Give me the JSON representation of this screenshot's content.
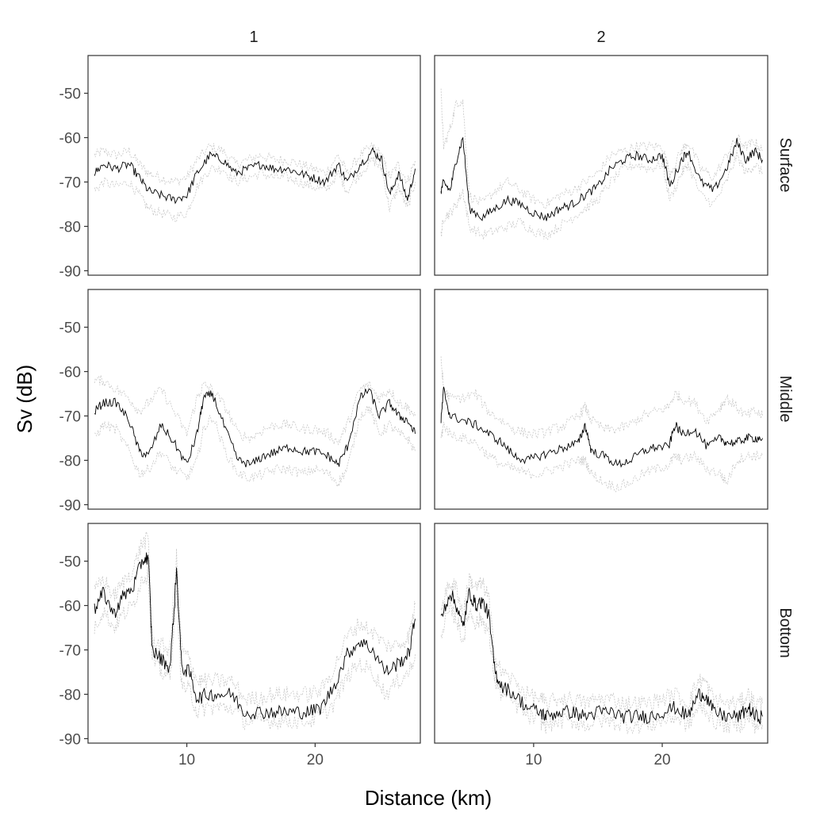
{
  "chart_data": {
    "type": "line",
    "title": "",
    "xlabel": "Distance (km)",
    "ylabel": "Sv (dB)",
    "layout": "facet_grid(rows = layer, cols = transect)",
    "facet_columns": [
      "1",
      "2"
    ],
    "facet_rows": [
      "Surface",
      "Middle",
      "Bottom"
    ],
    "xlim": [
      2.3,
      28.2
    ],
    "ylim": [
      -91,
      -41.5
    ],
    "x_ticks": [
      10,
      20
    ],
    "y_ticks": [
      -50,
      -60,
      -70,
      -80,
      -90
    ],
    "grid": false,
    "legend": "none",
    "series_style": {
      "mean": {
        "color": "#000000",
        "linetype": "solid",
        "description": "mean Sv"
      },
      "bounds": {
        "color": "#c8c8c8",
        "linetype": "dashed",
        "description": "upper/lower interval"
      }
    },
    "panels": [
      {
        "column": "1",
        "row": "Surface",
        "x": [
          2.8,
          3.5,
          4.5,
          5.5,
          6.3,
          7.0,
          8.0,
          9.0,
          10.0,
          10.8,
          11.8,
          12.8,
          13.8,
          14.8,
          15.8,
          16.8,
          17.8,
          18.8,
          19.8,
          20.8,
          21.8,
          22.5,
          23.5,
          24.5,
          25.2,
          25.8,
          26.5,
          27.2,
          27.8
        ],
        "mean": [
          -68,
          -66,
          -67,
          -66,
          -69,
          -72,
          -73,
          -74,
          -73,
          -68,
          -64,
          -65,
          -68,
          -67,
          -66,
          -67,
          -67,
          -68,
          -69,
          -70,
          -66,
          -70,
          -66,
          -63,
          -65,
          -73,
          -68,
          -74,
          -67
        ],
        "upper": [
          -64,
          -63,
          -64,
          -63,
          -66,
          -68,
          -69,
          -70,
          -69,
          -65,
          -62,
          -63,
          -66,
          -65,
          -64,
          -65,
          -65,
          -66,
          -67,
          -68,
          -64,
          -68,
          -64,
          -62,
          -64,
          -69,
          -66,
          -70,
          -65
        ],
        "lower": [
          -72,
          -70,
          -71,
          -70,
          -73,
          -76,
          -77,
          -78,
          -77,
          -71,
          -67,
          -67,
          -70,
          -69,
          -68,
          -69,
          -69,
          -70,
          -71,
          -72,
          -68,
          -72,
          -68,
          -65,
          -67,
          -76,
          -71,
          -76,
          -70
        ]
      },
      {
        "column": "2",
        "row": "Surface",
        "x": [
          2.8,
          3.0,
          3.5,
          4.0,
          4.5,
          5.0,
          6.0,
          7.0,
          8.0,
          9.0,
          10.0,
          11.0,
          12.0,
          13.0,
          14.0,
          15.0,
          16.0,
          17.0,
          18.0,
          19.0,
          20.0,
          20.6,
          21.5,
          22.0,
          23.0,
          24.0,
          25.0,
          25.8,
          26.5,
          27.2,
          27.8
        ],
        "mean": [
          -72,
          -70,
          -72,
          -65,
          -60,
          -76,
          -78,
          -76,
          -74,
          -75,
          -77,
          -78,
          -76,
          -75,
          -73,
          -71,
          -67,
          -65,
          -64,
          -65,
          -64,
          -71,
          -65,
          -63,
          -70,
          -72,
          -67,
          -61,
          -65,
          -63,
          -65
        ],
        "upper": [
          -50,
          -62,
          -58,
          -52,
          -52,
          -73,
          -75,
          -72,
          -70,
          -72,
          -74,
          -75,
          -73,
          -72,
          -70,
          -68,
          -64,
          -63,
          -62,
          -62,
          -62,
          -68,
          -63,
          -61,
          -67,
          -69,
          -64,
          -60,
          -62,
          -61,
          -63
        ],
        "lower": [
          -82,
          -78,
          -77,
          -75,
          -72,
          -80,
          -82,
          -81,
          -80,
          -79,
          -81,
          -82,
          -80,
          -78,
          -76,
          -74,
          -70,
          -67,
          -66,
          -67,
          -66,
          -74,
          -68,
          -66,
          -73,
          -75,
          -70,
          -64,
          -68,
          -66,
          -68
        ]
      },
      {
        "column": "1",
        "row": "Middle",
        "x": [
          2.8,
          3.5,
          4.5,
          5.5,
          6.3,
          7.0,
          8.0,
          9.0,
          10.0,
          10.8,
          11.3,
          12.0,
          13.0,
          14.0,
          15.0,
          16.0,
          17.0,
          18.0,
          19.0,
          20.0,
          21.0,
          21.8,
          22.5,
          23.5,
          24.2,
          25.0,
          25.8,
          26.5,
          27.2,
          27.8
        ],
        "mean": [
          -69,
          -67,
          -67,
          -71,
          -78,
          -79,
          -72,
          -76,
          -81,
          -74,
          -66,
          -65,
          -73,
          -80,
          -81,
          -79,
          -78,
          -77,
          -78,
          -78,
          -79,
          -81,
          -77,
          -66,
          -64,
          -70,
          -67,
          -70,
          -71,
          -74
        ],
        "upper": [
          -62,
          -62,
          -64,
          -66,
          -69,
          -67,
          -64,
          -69,
          -74,
          -66,
          -63,
          -64,
          -68,
          -74,
          -75,
          -73,
          -72,
          -72,
          -73,
          -73,
          -74,
          -76,
          -72,
          -64,
          -63,
          -66,
          -64,
          -67,
          -68,
          -70
        ],
        "lower": [
          -75,
          -72,
          -73,
          -78,
          -83,
          -82,
          -78,
          -82,
          -84,
          -80,
          -73,
          -70,
          -78,
          -83,
          -84,
          -83,
          -82,
          -82,
          -83,
          -82,
          -83,
          -85,
          -82,
          -70,
          -68,
          -74,
          -72,
          -74,
          -75,
          -78
        ]
      },
      {
        "column": "2",
        "row": "Middle",
        "x": [
          2.8,
          3.0,
          3.5,
          4.5,
          5.5,
          6.5,
          7.5,
          8.5,
          9.5,
          10.5,
          11.5,
          12.5,
          13.5,
          14.0,
          14.5,
          15.5,
          16.5,
          17.5,
          18.5,
          19.5,
          20.5,
          21.0,
          21.5,
          22.5,
          23.5,
          24.5,
          25.0,
          25.8,
          26.5,
          27.2,
          27.8
        ],
        "mean": [
          -71,
          -64,
          -70,
          -71,
          -72,
          -74,
          -76,
          -79,
          -80,
          -79,
          -78,
          -77,
          -76,
          -72,
          -78,
          -79,
          -81,
          -80,
          -78,
          -77,
          -77,
          -72,
          -74,
          -73,
          -77,
          -75,
          -76,
          -76,
          -75,
          -75,
          -75
        ],
        "upper": [
          -57,
          -64,
          -66,
          -66,
          -65,
          -69,
          -71,
          -73,
          -74,
          -74,
          -73,
          -72,
          -70,
          -68,
          -71,
          -73,
          -73,
          -72,
          -70,
          -69,
          -68,
          -65,
          -66,
          -67,
          -71,
          -68,
          -66,
          -68,
          -70,
          -69,
          -70
        ],
        "lower": [
          -75,
          -72,
          -74,
          -75,
          -76,
          -79,
          -81,
          -82,
          -83,
          -83,
          -82,
          -81,
          -80,
          -80,
          -83,
          -85,
          -86,
          -85,
          -83,
          -82,
          -81,
          -79,
          -80,
          -79,
          -82,
          -83,
          -85,
          -80,
          -79,
          -79,
          -79
        ]
      },
      {
        "column": "1",
        "row": "Bottom",
        "x": [
          2.8,
          3.5,
          4.3,
          5.0,
          5.8,
          6.5,
          7.0,
          7.3,
          8.0,
          8.7,
          9.2,
          9.6,
          10.2,
          10.8,
          11.5,
          12.5,
          13.5,
          14.5,
          15.5,
          16.5,
          17.5,
          18.5,
          19.5,
          20.5,
          21.5,
          22.5,
          23.5,
          24.5,
          25.5,
          26.5,
          27.3,
          27.8
        ],
        "mean": [
          -61,
          -57,
          -62,
          -58,
          -56,
          -50,
          -49,
          -70,
          -72,
          -74,
          -52,
          -74,
          -75,
          -81,
          -80,
          -80,
          -80,
          -84,
          -84,
          -84,
          -84,
          -84,
          -84,
          -83,
          -78,
          -71,
          -68,
          -70,
          -75,
          -73,
          -71,
          -63
        ],
        "upper": [
          -57,
          -54,
          -58,
          -55,
          -52,
          -46,
          -45,
          -68,
          -69,
          -70,
          -49,
          -70,
          -72,
          -77,
          -77,
          -77,
          -77,
          -81,
          -81,
          -80,
          -80,
          -80,
          -80,
          -79,
          -74,
          -67,
          -64,
          -66,
          -69,
          -69,
          -67,
          -60
        ],
        "lower": [
          -65,
          -61,
          -65,
          -62,
          -60,
          -54,
          -53,
          -72,
          -75,
          -76,
          -57,
          -78,
          -79,
          -84,
          -83,
          -83,
          -83,
          -86,
          -86,
          -86,
          -86,
          -86,
          -86,
          -85,
          -82,
          -76,
          -73,
          -75,
          -80,
          -77,
          -75,
          -71
        ]
      },
      {
        "column": "2",
        "row": "Bottom",
        "x": [
          2.8,
          3.5,
          4.0,
          4.5,
          5.0,
          5.5,
          6.0,
          6.5,
          7.0,
          7.5,
          8.5,
          9.5,
          10.5,
          11.0,
          12.0,
          13.0,
          14.0,
          15.0,
          16.0,
          17.0,
          18.0,
          19.0,
          20.0,
          21.0,
          22.0,
          22.8,
          23.3,
          24.0,
          25.0,
          26.0,
          26.7,
          27.2,
          27.8
        ],
        "mean": [
          -63,
          -57,
          -60,
          -65,
          -57,
          -60,
          -59,
          -62,
          -75,
          -78,
          -80,
          -83,
          -84,
          -85,
          -84,
          -84,
          -85,
          -84,
          -84,
          -85,
          -85,
          -85,
          -84,
          -83,
          -85,
          -80,
          -80,
          -84,
          -85,
          -85,
          -83,
          -85,
          -85
        ],
        "upper": [
          -60,
          -55,
          -56,
          -62,
          -54,
          -56,
          -55,
          -58,
          -72,
          -75,
          -77,
          -80,
          -81,
          -82,
          -81,
          -81,
          -82,
          -81,
          -81,
          -82,
          -82,
          -82,
          -81,
          -80,
          -82,
          -77,
          -77,
          -81,
          -82,
          -82,
          -80,
          -82,
          -82
        ],
        "lower": [
          -66,
          -61,
          -63,
          -68,
          -61,
          -64,
          -63,
          -66,
          -77,
          -80,
          -82,
          -85,
          -86,
          -87,
          -86,
          -86,
          -87,
          -86,
          -86,
          -87,
          -87,
          -87,
          -86,
          -85,
          -87,
          -83,
          -83,
          -86,
          -87,
          -87,
          -85,
          -87,
          -87
        ]
      }
    ]
  },
  "labels": {
    "col_strip": [
      "1",
      "2"
    ],
    "row_strip": [
      "Surface",
      "Middle",
      "Bottom"
    ],
    "x_axis_title": "Distance (km)",
    "y_axis_title": "Sv (dB)",
    "y_tick_labels": [
      "-50",
      "-60",
      "-70",
      "-80",
      "-90"
    ],
    "x_tick_labels": [
      "10",
      "20"
    ]
  }
}
